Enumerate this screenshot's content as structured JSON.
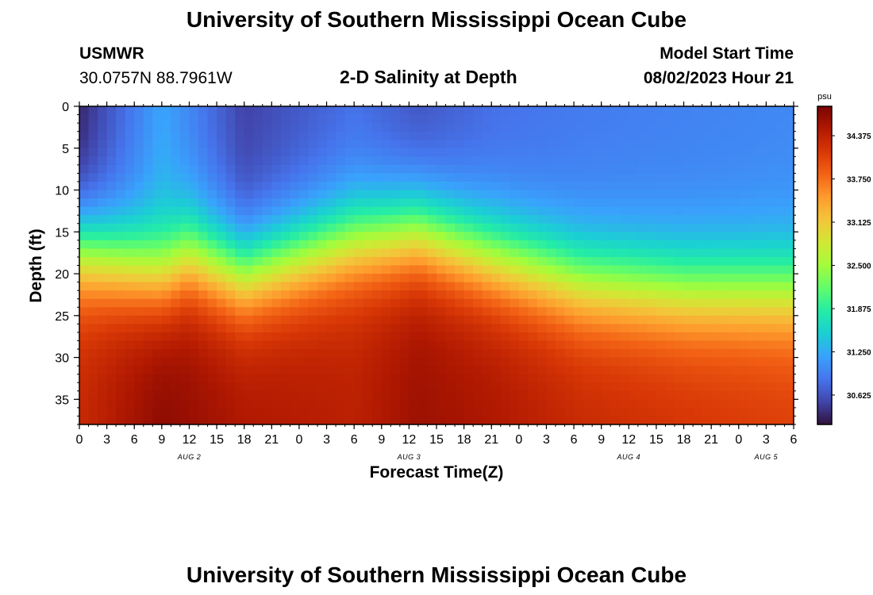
{
  "page": {
    "title": "University of Southern Mississippi Ocean Cube",
    "footer_title": "University of Southern Mississippi Ocean Cube",
    "station": "USMWR",
    "coords": "30.0757N  88.7961W",
    "subtitle": "2-D Salinity at Depth",
    "model_label": "Model Start Time",
    "model_time": "08/02/2023 Hour 21"
  },
  "chart_data": {
    "type": "heatmap",
    "title": "2-D Salinity at Depth",
    "xlabel": "Forecast Time(Z)",
    "ylabel": "Depth (ft)",
    "x_range_hours": [
      0,
      78
    ],
    "x_start_time": "08/02/2023 00Z",
    "ylim": [
      0,
      38
    ],
    "y_ticks": [
      0,
      5,
      10,
      15,
      20,
      25,
      30,
      35
    ],
    "x_tick_labels": [
      "0",
      "3",
      "6",
      "9",
      "12",
      "15",
      "18",
      "21",
      "0",
      "3",
      "6",
      "9",
      "12",
      "15",
      "18",
      "21",
      "0",
      "3",
      "6",
      "9",
      "12",
      "15",
      "18",
      "21",
      "0",
      "3",
      "6"
    ],
    "date_labels": [
      {
        "hour": 12,
        "label": "AUG 2"
      },
      {
        "hour": 36,
        "label": "AUG 3"
      },
      {
        "hour": 60,
        "label": "AUG 4"
      },
      {
        "hour": 75,
        "label": "AUG 5"
      }
    ],
    "colorbar": {
      "unit": "psu",
      "vmin": 30.2,
      "vmax": 34.8,
      "ticks": [
        "34.375",
        "33.750",
        "33.125",
        "32.500",
        "31.875",
        "31.250",
        "30.625"
      ]
    },
    "surface_salinity_psu": [
      [
        0,
        30.3
      ],
      [
        9,
        31.2
      ],
      [
        18,
        30.5
      ],
      [
        30,
        30.8
      ],
      [
        37,
        30.6
      ],
      [
        45,
        30.8
      ],
      [
        55,
        30.9
      ],
      [
        66,
        30.95
      ],
      [
        78,
        31.0
      ]
    ],
    "bottom_salinity_psu": [
      [
        0,
        34.3
      ],
      [
        9,
        34.7
      ],
      [
        18,
        34.5
      ],
      [
        30,
        34.4
      ],
      [
        37,
        34.6
      ],
      [
        45,
        34.5
      ],
      [
        55,
        34.3
      ],
      [
        66,
        34.2
      ],
      [
        78,
        34.1
      ]
    ],
    "halocline_depth_ft": [
      [
        0,
        14
      ],
      [
        9,
        17
      ],
      [
        12,
        15
      ],
      [
        18,
        17
      ],
      [
        30,
        13
      ],
      [
        37,
        12
      ],
      [
        45,
        15
      ],
      [
        55,
        18
      ],
      [
        66,
        19
      ],
      [
        78,
        19
      ]
    ]
  },
  "colors": {
    "cmap": [
      "#30123b",
      "#4145ab",
      "#4675ed",
      "#39a2fc",
      "#1bcfd4",
      "#24eca6",
      "#61fc6c",
      "#a4fc3b",
      "#d1e834",
      "#f3c63a",
      "#fe9b2d",
      "#f36315",
      "#d93806",
      "#b11901",
      "#7a0403"
    ]
  }
}
